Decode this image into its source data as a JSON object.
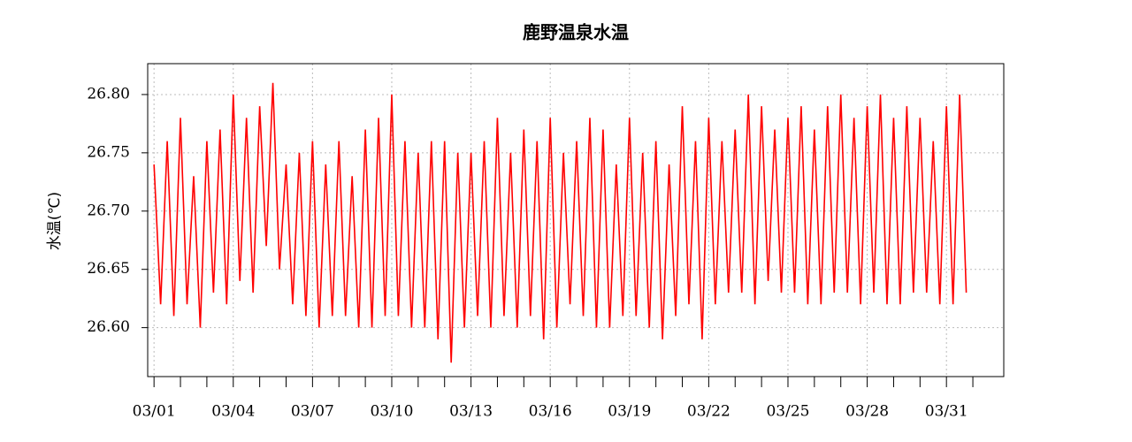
{
  "chart_data": {
    "type": "line",
    "title": "鹿野温泉水温",
    "ylabel": "水温(℃)",
    "color": "#ff0000",
    "grid": true,
    "xlim": [
      0.76,
      33.17
    ],
    "ylim": [
      26.558,
      26.8265
    ],
    "yticks": [
      {
        "value": 26.6,
        "label": "26.60"
      },
      {
        "value": 26.65,
        "label": "26.65"
      },
      {
        "value": 26.7,
        "label": "26.70"
      },
      {
        "value": 26.75,
        "label": "26.75"
      },
      {
        "value": 26.8,
        "label": "26.80"
      }
    ],
    "xticks": [
      {
        "value": 1,
        "label": "03/01"
      },
      {
        "value": 4,
        "label": "03/04"
      },
      {
        "value": 7,
        "label": "03/07"
      },
      {
        "value": 10,
        "label": "03/10"
      },
      {
        "value": 13,
        "label": "03/13"
      },
      {
        "value": 16,
        "label": "03/16"
      },
      {
        "value": 19,
        "label": "03/19"
      },
      {
        "value": 22,
        "label": "03/22"
      },
      {
        "value": 25,
        "label": "03/25"
      },
      {
        "value": 28,
        "label": "03/28"
      },
      {
        "value": 31,
        "label": "03/31"
      }
    ],
    "xminorticks": [
      1,
      2,
      3,
      4,
      5,
      6,
      7,
      8,
      9,
      10,
      11,
      12,
      13,
      14,
      15,
      16,
      17,
      18,
      19,
      20,
      21,
      22,
      23,
      24,
      25,
      26,
      27,
      28,
      29,
      30,
      31,
      32
    ],
    "x": [
      1,
      1.25,
      1.5,
      1.75,
      2,
      2.25,
      2.5,
      2.75,
      3,
      3.25,
      3.5,
      3.75,
      4,
      4.25,
      4.5,
      4.75,
      5,
      5.25,
      5.5,
      5.75,
      6,
      6.25,
      6.5,
      6.75,
      7,
      7.25,
      7.5,
      7.75,
      8,
      8.25,
      8.5,
      8.75,
      9,
      9.25,
      9.5,
      9.75,
      10,
      10.25,
      10.5,
      10.75,
      11,
      11.25,
      11.5,
      11.75,
      12,
      12.25,
      12.5,
      12.75,
      13,
      13.25,
      13.5,
      13.75,
      14,
      14.25,
      14.5,
      14.75,
      15,
      15.25,
      15.5,
      15.75,
      16,
      16.25,
      16.5,
      16.75,
      17,
      17.25,
      17.5,
      17.75,
      18,
      18.25,
      18.5,
      18.75,
      19,
      19.25,
      19.5,
      19.75,
      20,
      20.25,
      20.5,
      20.75,
      21,
      21.25,
      21.5,
      21.75,
      22,
      22.25,
      22.5,
      22.75,
      23,
      23.25,
      23.5,
      23.75,
      24,
      24.25,
      24.5,
      24.75,
      25,
      25.25,
      25.5,
      25.75,
      26,
      26.25,
      26.5,
      26.75,
      27,
      27.25,
      27.5,
      27.75,
      28,
      28.25,
      28.5,
      28.75,
      29,
      29.25,
      29.5,
      29.75,
      30,
      30.25,
      30.5,
      30.75,
      31,
      31.25,
      31.5,
      31.75
    ],
    "values": [
      26.74,
      26.62,
      26.76,
      26.61,
      26.78,
      26.62,
      26.73,
      26.6,
      26.76,
      26.63,
      26.77,
      26.62,
      26.8,
      26.64,
      26.78,
      26.63,
      26.79,
      26.67,
      26.81,
      26.65,
      26.74,
      26.62,
      26.75,
      26.61,
      26.76,
      26.6,
      26.74,
      26.61,
      26.76,
      26.61,
      26.73,
      26.6,
      26.77,
      26.6,
      26.78,
      26.61,
      26.8,
      26.61,
      26.76,
      26.6,
      26.75,
      26.6,
      26.76,
      26.59,
      26.76,
      26.57,
      26.75,
      26.6,
      26.75,
      26.61,
      26.76,
      26.6,
      26.78,
      26.61,
      26.75,
      26.6,
      26.77,
      26.61,
      26.76,
      26.59,
      26.78,
      26.6,
      26.75,
      26.62,
      26.76,
      26.61,
      26.78,
      26.6,
      26.77,
      26.6,
      26.74,
      26.61,
      26.78,
      26.61,
      26.75,
      26.6,
      26.76,
      26.59,
      26.74,
      26.61,
      26.79,
      26.62,
      26.76,
      26.59,
      26.78,
      26.62,
      26.76,
      26.63,
      26.77,
      26.63,
      26.8,
      26.62,
      26.79,
      26.64,
      26.77,
      26.63,
      26.78,
      26.63,
      26.79,
      26.62,
      26.77,
      26.62,
      26.79,
      26.63,
      26.8,
      26.63,
      26.78,
      26.62,
      26.79,
      26.63,
      26.8,
      26.62,
      26.78,
      26.62,
      26.79,
      26.63,
      26.78,
      26.63,
      26.76,
      26.62,
      26.79,
      26.62,
      26.8,
      26.63
    ]
  }
}
